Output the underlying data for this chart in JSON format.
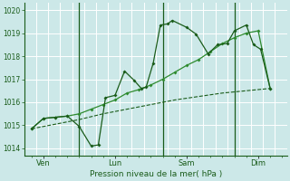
{
  "xlabel": "Pression niveau de la mer( hPa )",
  "bg_color": "#cce8e8",
  "grid_color": "#ffffff",
  "line_color_dark": "#1a5c1a",
  "line_color_mid": "#2d8a2d",
  "ylim": [
    1013.7,
    1020.3
  ],
  "yticks": [
    1014,
    1015,
    1016,
    1017,
    1018,
    1019,
    1020
  ],
  "xtick_labels": [
    "Ven",
    "Lun",
    "Sam",
    "Dim"
  ],
  "xtick_positions": [
    0.5,
    3.5,
    6.5,
    9.5
  ],
  "vlines": [
    2.0,
    5.5,
    8.5
  ],
  "series1_x": [
    0.0,
    0.5,
    1.0,
    1.5,
    2.0,
    2.5,
    2.8,
    3.1,
    3.5,
    3.9,
    4.3,
    4.6,
    4.8,
    5.1,
    5.4,
    5.7,
    5.9,
    6.5,
    6.9,
    7.4,
    7.8,
    8.2,
    8.5,
    9.0,
    9.3,
    9.6,
    10.0
  ],
  "series1_y": [
    1014.85,
    1015.3,
    1015.35,
    1015.4,
    1014.95,
    1014.1,
    1014.15,
    1016.2,
    1016.3,
    1017.35,
    1016.95,
    1016.6,
    1016.65,
    1017.7,
    1019.35,
    1019.4,
    1019.55,
    1019.25,
    1018.95,
    1018.1,
    1018.5,
    1018.55,
    1019.1,
    1019.35,
    1018.5,
    1018.3,
    1016.6
  ],
  "series2_x": [
    0.0,
    0.5,
    1.0,
    1.5,
    2.0,
    2.5,
    3.0,
    3.5,
    4.0,
    4.5,
    5.0,
    5.5,
    6.0,
    6.5,
    7.0,
    7.5,
    8.0,
    8.5,
    9.0,
    9.5,
    10.0
  ],
  "series2_y": [
    1014.85,
    1015.3,
    1015.35,
    1015.4,
    1015.5,
    1015.7,
    1015.9,
    1016.1,
    1016.4,
    1016.55,
    1016.75,
    1017.0,
    1017.3,
    1017.6,
    1017.85,
    1018.2,
    1018.55,
    1018.8,
    1019.0,
    1019.1,
    1016.6
  ],
  "series3_x": [
    0.0,
    1.0,
    2.0,
    3.0,
    4.0,
    5.0,
    6.0,
    7.0,
    8.0,
    9.0,
    10.0
  ],
  "series3_y": [
    1014.85,
    1015.05,
    1015.25,
    1015.5,
    1015.7,
    1015.9,
    1016.1,
    1016.25,
    1016.4,
    1016.5,
    1016.6
  ]
}
